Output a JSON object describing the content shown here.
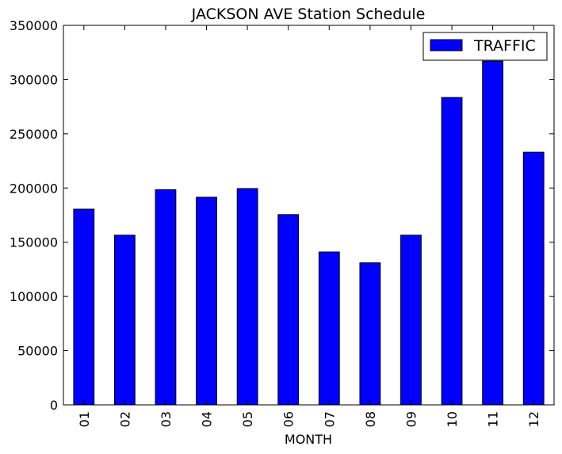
{
  "chart_data": {
    "type": "bar",
    "title": "JACKSON AVE Station Schedule",
    "xlabel": "MONTH",
    "ylabel": "",
    "categories": [
      "01",
      "02",
      "03",
      "04",
      "05",
      "06",
      "07",
      "08",
      "09",
      "10",
      "11",
      "12"
    ],
    "series": [
      {
        "name": "TRAFFIC",
        "color": "#0000ff",
        "values": [
          180500,
          156500,
          198500,
          191500,
          199500,
          175500,
          141000,
          131000,
          156500,
          283500,
          317000,
          233000
        ]
      }
    ],
    "ylim": [
      0,
      350000
    ],
    "yticks": [
      0,
      50000,
      100000,
      150000,
      200000,
      250000,
      300000,
      350000
    ],
    "ytick_labels": [
      "0",
      "50000",
      "100000",
      "150000",
      "200000",
      "250000",
      "300000",
      "350000"
    ],
    "grid": false,
    "legend_position": "top-right",
    "xtick_rotation": "vertical"
  }
}
